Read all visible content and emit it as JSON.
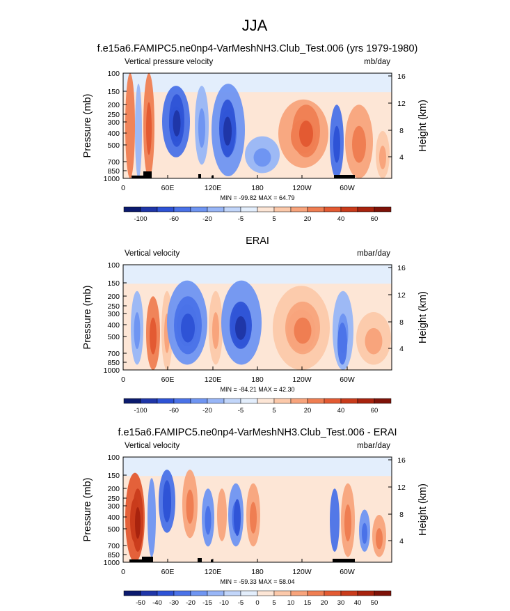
{
  "page": {
    "main_title": "JJA",
    "panel1_title": "f.e15a6.FAMIPC5.ne0np4-VarMeshNH3.Club_Test.006 (yrs 1979-1980)",
    "panel2_title": "ERAI",
    "panel3_title": "f.e15a6.FAMIPC5.ne0np4-VarMeshNH3.Club_Test.006 - ERAI"
  },
  "chart_data": [
    {
      "type": "heatmap",
      "variable": "Vertical pressure velocity",
      "units": "mb/day",
      "ylabel": "Pressure (mb)",
      "ylabel_right": "Height (km)",
      "pressure_ticks": [
        "100",
        "150",
        "200",
        "250",
        "300",
        "400",
        "500",
        "700",
        "850",
        "1000"
      ],
      "height_ticks": [
        "16",
        "12",
        "8",
        "4"
      ],
      "lon_ticks": [
        "0",
        "60E",
        "120E",
        "180",
        "120W",
        "60W"
      ],
      "stats": "MIN = -99.82  MAX =  64.79",
      "colorbar_labels": [
        "-100",
        "-60",
        "-20",
        "-5",
        "5",
        "20",
        "40",
        "60"
      ],
      "colorbar_colors": [
        "#0b1a6e",
        "#1f36a8",
        "#2e53d6",
        "#4a72e8",
        "#6f95f2",
        "#98b6f7",
        "#c2d6fa",
        "#e3eefc",
        "#fde6d6",
        "#fcc9aa",
        "#f8a47c",
        "#ef7e52",
        "#e35a32",
        "#c93b1b",
        "#a8230e",
        "#7e1208"
      ]
    },
    {
      "type": "heatmap",
      "variable": "Vertical velocity",
      "units": "mbar/day",
      "ylabel": "Pressure (mb)",
      "ylabel_right": "Height (km)",
      "pressure_ticks": [
        "100",
        "150",
        "200",
        "250",
        "300",
        "400",
        "500",
        "700",
        "850",
        "1000"
      ],
      "height_ticks": [
        "16",
        "12",
        "8",
        "4"
      ],
      "lon_ticks": [
        "0",
        "60E",
        "120E",
        "180",
        "120W",
        "60W"
      ],
      "stats": "MIN = -84.21  MAX =  42.30",
      "colorbar_labels": [
        "-100",
        "-60",
        "-20",
        "-5",
        "5",
        "20",
        "40",
        "60"
      ],
      "colorbar_colors": [
        "#0b1a6e",
        "#1f36a8",
        "#2e53d6",
        "#4a72e8",
        "#6f95f2",
        "#98b6f7",
        "#c2d6fa",
        "#e3eefc",
        "#fde6d6",
        "#fcc9aa",
        "#f8a47c",
        "#ef7e52",
        "#e35a32",
        "#c93b1b",
        "#a8230e",
        "#7e1208"
      ]
    },
    {
      "type": "heatmap",
      "variable": "Vertical velocity",
      "units": "mbar/day",
      "ylabel": "Pressure (mb)",
      "ylabel_right": "Height (km)",
      "pressure_ticks": [
        "100",
        "150",
        "200",
        "250",
        "300",
        "400",
        "500",
        "700",
        "850",
        "1000"
      ],
      "height_ticks": [
        "16",
        "12",
        "8",
        "4"
      ],
      "lon_ticks": [
        "0",
        "60E",
        "120E",
        "180",
        "120W",
        "60W"
      ],
      "stats": "MIN = -59.33  MAX = 58.04",
      "colorbar_labels": [
        "-50",
        "-40",
        "-30",
        "-20",
        "-15",
        "-10",
        "-5",
        "0",
        "5",
        "10",
        "15",
        "20",
        "30",
        "40",
        "50"
      ],
      "colorbar_colors": [
        "#0b1a6e",
        "#1f36a8",
        "#2e53d6",
        "#4a72e8",
        "#6f95f2",
        "#98b6f7",
        "#c2d6fa",
        "#e3eefc",
        "#fde6d6",
        "#fcc9aa",
        "#f8a47c",
        "#ef7e52",
        "#e35a32",
        "#c93b1b",
        "#a8230e",
        "#7e1208"
      ]
    }
  ]
}
